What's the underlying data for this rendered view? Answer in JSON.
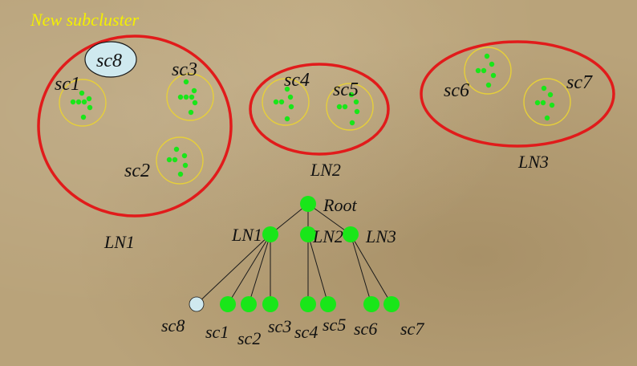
{
  "title": "New subcluster",
  "colors": {
    "background": "#b9a37a",
    "big_circle": "#e11b1b",
    "small_circle": "#e6cf3a",
    "point": "#19e619",
    "node": "#19e619",
    "new_node": "#cfe9ef",
    "text": "#111111",
    "title_text": "#f4f000"
  },
  "clusters": {
    "ln1_label": "LN1",
    "ln2_label": "LN2",
    "ln3_label": "LN3"
  },
  "subclusters": {
    "sc1": "sc1",
    "sc2": "sc2",
    "sc3": "sc3",
    "sc4": "sc4",
    "sc5": "sc5",
    "sc6": "sc6",
    "sc7": "sc7",
    "sc8": "sc8"
  },
  "tree": {
    "root": "Root",
    "ln1": "LN1",
    "ln2": "LN2",
    "ln3": "LN3",
    "leaves": [
      "sc8",
      "sc1",
      "sc2",
      "sc3",
      "sc4",
      "sc5",
      "sc6",
      "sc7"
    ]
  }
}
